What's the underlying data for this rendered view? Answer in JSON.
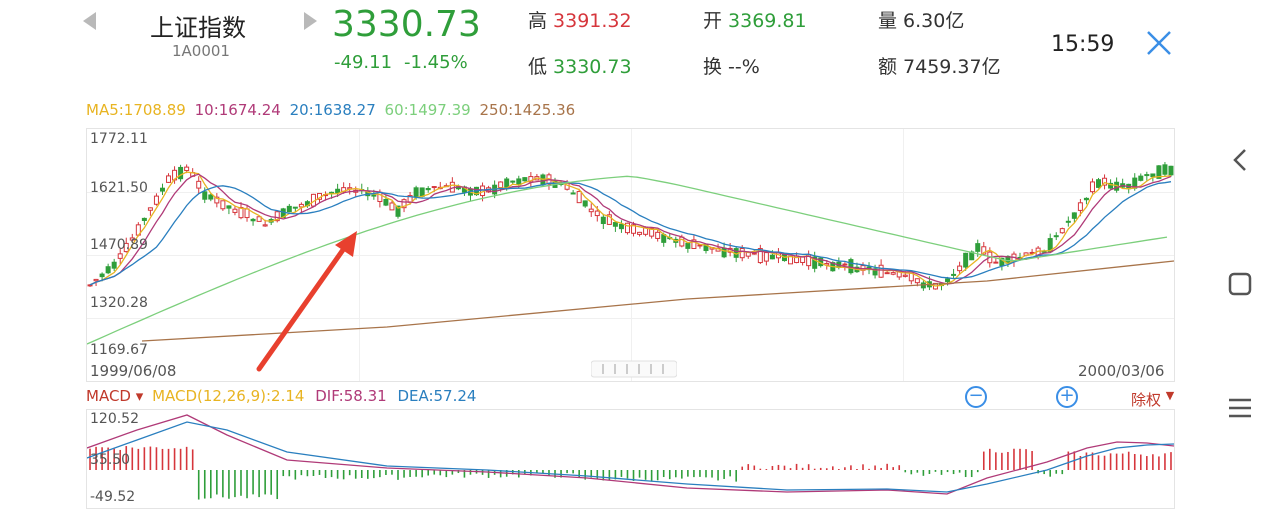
{
  "header": {
    "name": "上证指数",
    "code": "1A0001",
    "price": "3330.73",
    "change": "-49.11",
    "change_pct": "-1.45%",
    "high_label": "高",
    "high_value": "3391.32",
    "low_label": "低",
    "low_value": "3330.73",
    "open_label": "开",
    "open_value": "3369.81",
    "turnover_label": "换",
    "turnover_value": "--%",
    "volume_label": "量",
    "volume_value": "6.30亿",
    "amount_label": "额",
    "amount_value": "7459.37亿",
    "time": "15:59"
  },
  "ma_legend": {
    "ma5": "MA5:1708.89",
    "ma10": "10:1674.24",
    "ma20": "20:1638.27",
    "ma60": "60:1497.39",
    "ma250": "250:1425.36"
  },
  "kline": {
    "y_labels": [
      "1772.11",
      "1621.50",
      "1470.89",
      "1320.28",
      "1169.67"
    ],
    "date_start": "1999/06/08",
    "date_end": "2000/03/06"
  },
  "macd": {
    "selector": "MACD",
    "params": "MACD(12,26,9):2.14",
    "dif": "DIF:58.31",
    "dea": "DEA:57.24",
    "y_labels": [
      "120.52",
      "35.50",
      "-49.52"
    ],
    "rights_label": "除权"
  },
  "colors": {
    "up": "#d6363c",
    "down": "#2f9e3a",
    "ma5": "#e8b422",
    "ma10": "#b03a78",
    "ma20": "#2a7fbf",
    "ma60": "#7ccf7c",
    "ma250": "#a8744a",
    "arrow": "#e8402e",
    "accent": "#3a8ee6"
  }
}
